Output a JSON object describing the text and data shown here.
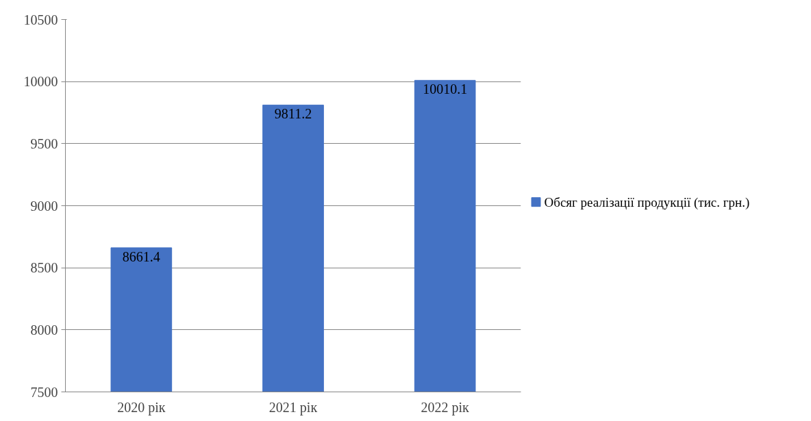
{
  "chart_data": {
    "type": "bar",
    "categories": [
      "2020 рік",
      "2021 рік",
      "2022 рік"
    ],
    "series": [
      {
        "name": "Обсяг реалізації продукції (тис. грн.)",
        "color": "#4472c4",
        "values": [
          8661.4,
          9811.2,
          10010.1
        ]
      }
    ],
    "ylim": [
      7500,
      10500
    ],
    "yticks": [
      7500,
      8000,
      8500,
      9000,
      9500,
      10000,
      10500
    ],
    "grid": "y",
    "legend": "right",
    "data_labels": true
  }
}
